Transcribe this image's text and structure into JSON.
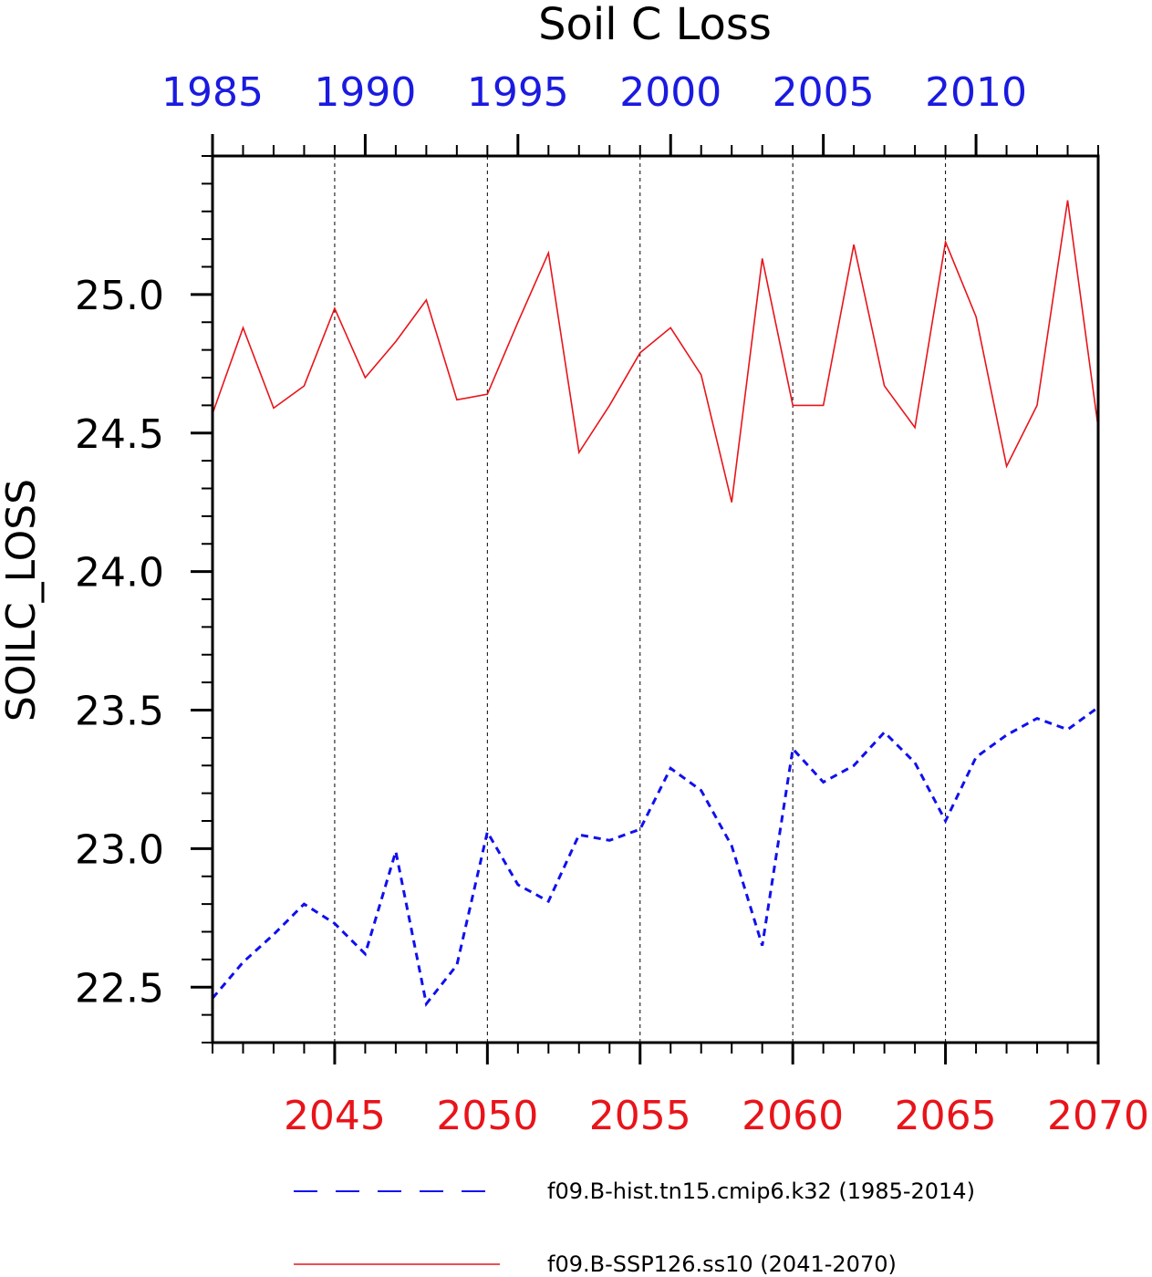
{
  "chart_data": {
    "type": "line",
    "title": "Soil C Loss",
    "ylabel": "SOILC_LOSS",
    "ylim": [
      22.3,
      25.5
    ],
    "yticks": [
      "22.5",
      "23.0",
      "23.5",
      "24.0",
      "24.5",
      "25.0"
    ],
    "grid": "vertical dashed at major ticks",
    "bottom_axis": {
      "label_color": "#e8141a",
      "range": [
        2041,
        2070
      ],
      "ticks": [
        "2045",
        "2050",
        "2055",
        "2060",
        "2065",
        "2070"
      ]
    },
    "top_axis": {
      "label_color": "#1a1ae0",
      "range": [
        1985,
        2014
      ],
      "ticks": [
        "1985",
        "1990",
        "1995",
        "2000",
        "2005",
        "2010"
      ]
    },
    "series": [
      {
        "name": "f09.B-hist.tn15.cmip6.k32 (1985-2014)",
        "color": "#1010ee",
        "style": "dashed",
        "axis": "top",
        "x": [
          1985,
          1986,
          1987,
          1988,
          1989,
          1990,
          1991,
          1992,
          1993,
          1994,
          1995,
          1996,
          1997,
          1998,
          1999,
          2000,
          2001,
          2002,
          2003,
          2004,
          2005,
          2006,
          2007,
          2008,
          2009,
          2010,
          2011,
          2012,
          2013,
          2014
        ],
        "y": [
          22.46,
          22.59,
          22.69,
          22.8,
          22.73,
          22.62,
          22.99,
          22.44,
          22.58,
          23.06,
          22.87,
          22.81,
          23.05,
          23.03,
          23.07,
          23.29,
          23.21,
          23.01,
          22.65,
          23.36,
          23.24,
          23.3,
          23.42,
          23.31,
          23.1,
          23.33,
          23.41,
          23.47,
          23.43,
          23.51
        ]
      },
      {
        "name": "f09.B-SSP126.ss10 (2041-2070)",
        "color": "#e8141a",
        "style": "solid",
        "axis": "bottom",
        "x": [
          2041,
          2042,
          2043,
          2044,
          2045,
          2046,
          2047,
          2048,
          2049,
          2050,
          2051,
          2052,
          2053,
          2054,
          2055,
          2056,
          2057,
          2058,
          2059,
          2060,
          2061,
          2062,
          2063,
          2064,
          2065,
          2066,
          2067,
          2068,
          2069,
          2070
        ],
        "y": [
          24.57,
          24.88,
          24.59,
          24.67,
          24.95,
          24.7,
          24.83,
          24.98,
          24.62,
          24.64,
          24.9,
          25.15,
          24.43,
          24.6,
          24.79,
          24.88,
          24.71,
          24.25,
          25.13,
          24.6,
          24.6,
          25.18,
          24.67,
          24.52,
          25.19,
          24.92,
          24.38,
          24.6,
          25.34,
          24.52
        ]
      }
    ],
    "legend_position": "bottom"
  }
}
